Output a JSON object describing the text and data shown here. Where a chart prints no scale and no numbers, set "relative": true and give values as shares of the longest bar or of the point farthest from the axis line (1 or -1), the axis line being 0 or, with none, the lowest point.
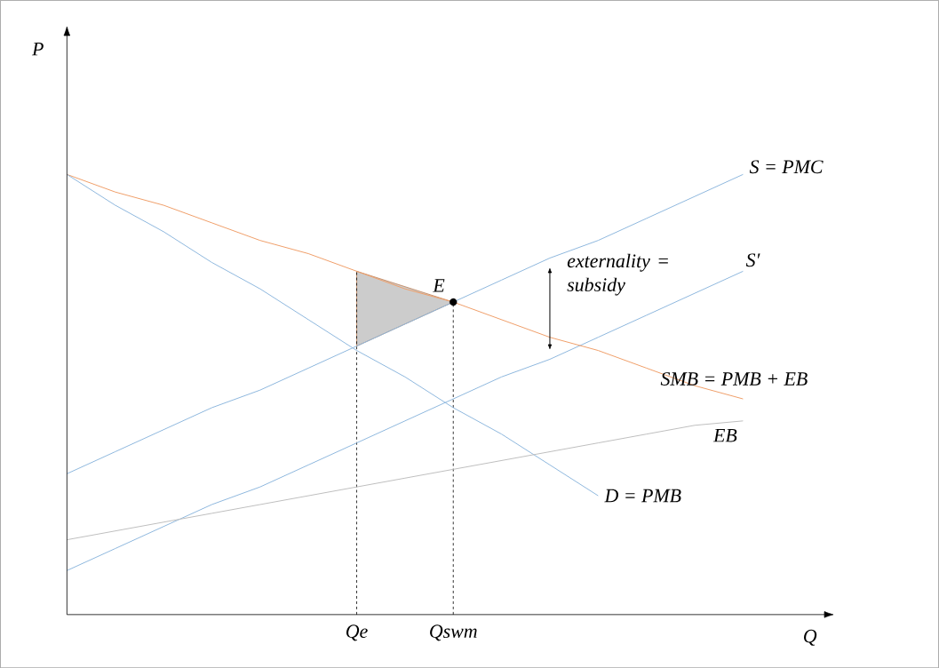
{
  "chart_data": {
    "type": "line",
    "relative": true,
    "xlabel": "Q",
    "categories": [
      null,
      null,
      null,
      null,
      null,
      null,
      "Qe",
      null,
      "Qswm",
      null,
      null,
      null,
      null,
      null,
      null
    ],
    "series": [
      {
        "name": "S = PMC",
        "color": "#8fb8de",
        "values": [
          0.32,
          0.37,
          0.42,
          0.47,
          0.51,
          0.56,
          0.61,
          0.66,
          0.71,
          0.76,
          0.81,
          0.85,
          0.9,
          0.95,
          1.0
        ]
      },
      {
        "name": "S′",
        "color": "#8fb8de",
        "values": [
          0.1,
          0.15,
          0.2,
          0.25,
          0.29,
          0.34,
          0.39,
          0.44,
          0.49,
          0.54,
          0.58,
          0.63,
          0.68,
          0.73,
          0.78
        ]
      },
      {
        "name": "SMB = PMB + EB",
        "color": "#f0a06a",
        "values": [
          1.0,
          0.96,
          0.93,
          0.89,
          0.85,
          0.82,
          0.78,
          0.74,
          0.71,
          0.67,
          0.63,
          0.6,
          0.56,
          0.52,
          0.49
        ]
      },
      {
        "name": "D = PMB",
        "color": "#8fb8de",
        "values": [
          1.0,
          0.93,
          0.87,
          0.8,
          0.74,
          0.67,
          0.6,
          0.54,
          0.47,
          0.41,
          0.34,
          0.27,
          null,
          null,
          null
        ]
      },
      {
        "name": "EB",
        "color": "#bfbfbf",
        "values": [
          0.17,
          0.19,
          0.21,
          0.23,
          0.25,
          0.27,
          0.29,
          0.31,
          0.33,
          0.35,
          0.37,
          0.39,
          0.41,
          0.43,
          0.44
        ]
      },
      {
        "type": "scatter",
        "color": "#000000",
        "x": [
          "Qswm"
        ],
        "values": [
          0.71
        ]
      }
    ],
    "annotations": [
      {
        "text": "E",
        "x": "Qswm",
        "y": 0.71
      },
      "externality = subsidy",
      "P"
    ]
  }
}
